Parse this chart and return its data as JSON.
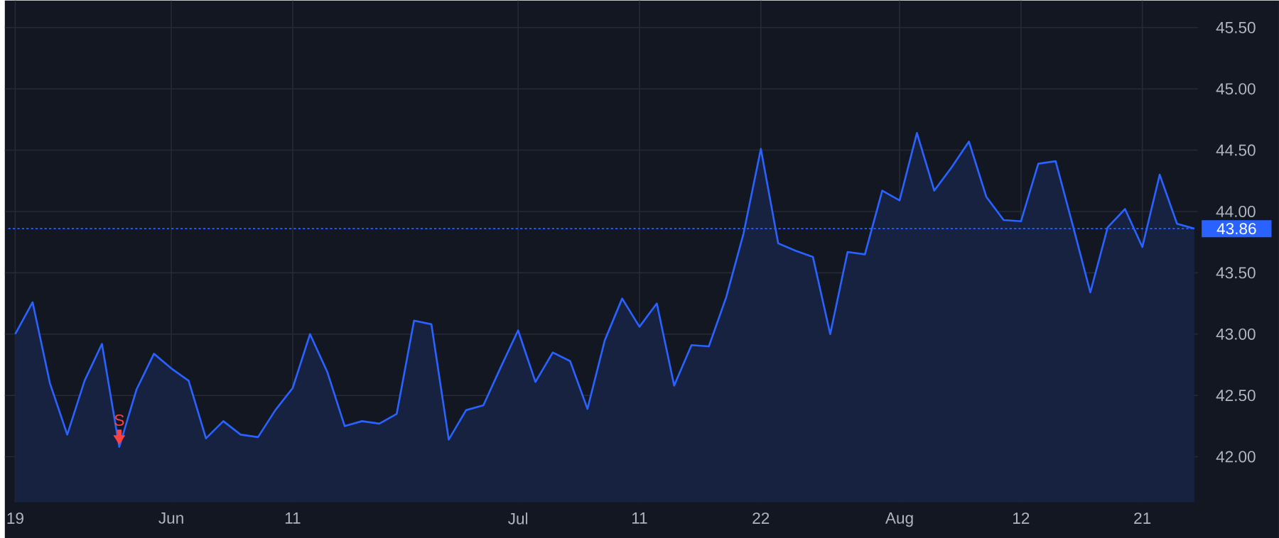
{
  "chart_data": {
    "type": "area",
    "categories": [
      "19",
      null,
      null,
      null,
      null,
      null,
      null,
      null,
      null,
      "Jun",
      null,
      null,
      null,
      null,
      null,
      null,
      "11",
      null,
      null,
      null,
      null,
      null,
      null,
      null,
      null,
      null,
      null,
      null,
      null,
      "Jul",
      null,
      null,
      null,
      null,
      null,
      null,
      "11",
      null,
      null,
      null,
      null,
      null,
      null,
      "22",
      null,
      null,
      null,
      null,
      null,
      null,
      null,
      "Aug",
      null,
      null,
      null,
      null,
      null,
      null,
      "12",
      null,
      null,
      null,
      null,
      null,
      null,
      "21",
      null,
      null,
      null
    ],
    "values": [
      43.0,
      43.26,
      42.6,
      42.18,
      42.62,
      42.92,
      42.08,
      42.55,
      42.84,
      42.72,
      42.62,
      42.15,
      42.29,
      42.18,
      42.16,
      42.38,
      42.56,
      43.0,
      42.69,
      42.25,
      42.29,
      42.27,
      42.35,
      43.11,
      43.08,
      42.14,
      42.38,
      42.42,
      42.73,
      43.03,
      42.61,
      42.85,
      42.78,
      42.39,
      42.95,
      43.29,
      43.06,
      43.25,
      42.58,
      42.91,
      42.9,
      43.3,
      43.82,
      44.51,
      43.74,
      43.68,
      43.63,
      43.0,
      43.67,
      43.65,
      44.17,
      44.09,
      44.64,
      44.17,
      44.36,
      44.57,
      44.12,
      43.93,
      43.92,
      44.39,
      44.41,
      43.88,
      43.34,
      43.87,
      44.02,
      43.71,
      44.3,
      43.9,
      43.86
    ],
    "color": "#2962ff",
    "ylim": [
      41.63,
      45.72
    ],
    "yticks": [
      {
        "value": 42,
        "label": "42.00"
      },
      {
        "value": 42.5,
        "label": "42.50"
      },
      {
        "value": 43,
        "label": "43.00"
      },
      {
        "value": 43.5,
        "label": "43.50"
      },
      {
        "value": 44,
        "label": "44.00"
      },
      {
        "value": 44.5,
        "label": "44.50"
      },
      {
        "value": 45,
        "label": "45.00"
      },
      {
        "value": 45.5,
        "label": "45.50"
      }
    ],
    "grid": true,
    "ref_lines": [
      {
        "axis": "y",
        "value": 43.86,
        "label": "43.86",
        "color": "#2962ff",
        "line_style": "dotted"
      }
    ],
    "annotations": [
      {
        "text": "S",
        "y": 42.08
      }
    ]
  }
}
